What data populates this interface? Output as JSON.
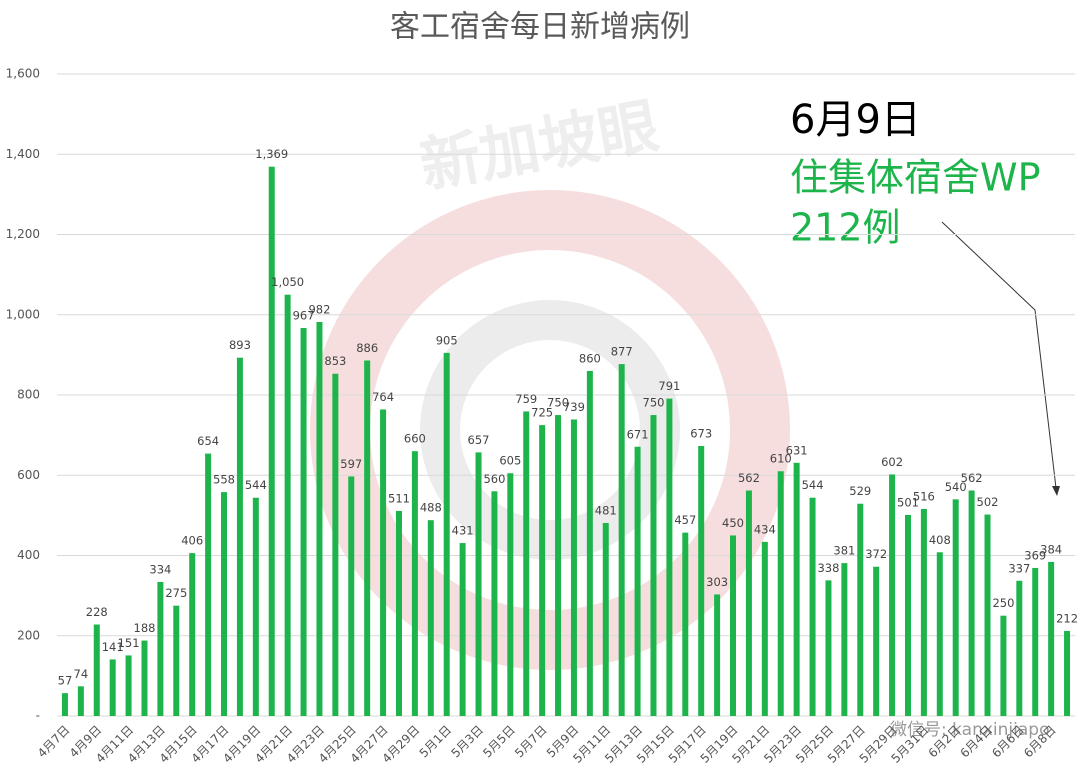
{
  "chart_data": {
    "type": "bar",
    "title": "客工宿舍每日新增病例",
    "categories": [
      "4月7日",
      null,
      "4月9日",
      null,
      "4月11日",
      null,
      "4月13日",
      null,
      "4月15日",
      null,
      "4月17日",
      null,
      "4月19日",
      null,
      "4月21日",
      null,
      "4月23日",
      null,
      "4月25日",
      null,
      "4月27日",
      null,
      "4月29日",
      null,
      "5月1日",
      null,
      "5月3日",
      null,
      "5月5日",
      null,
      "5月7日",
      null,
      "5月9日",
      null,
      "5月11日",
      null,
      "5月13日",
      null,
      "5月15日",
      null,
      "5月17日",
      null,
      "5月19日",
      null,
      "5月21日",
      null,
      "5月23日",
      null,
      "5月25日",
      null,
      "5月27日",
      null,
      "5月29日",
      null,
      "5月31日",
      null,
      "6月2日",
      null,
      "6月4日",
      null,
      "6月6日",
      null,
      "6月8日",
      null
    ],
    "values": [
      57,
      74,
      228,
      141,
      151,
      188,
      334,
      275,
      406,
      654,
      558,
      893,
      544,
      1369,
      1050,
      967,
      982,
      853,
      597,
      886,
      764,
      511,
      660,
      488,
      905,
      431,
      657,
      560,
      605,
      759,
      725,
      750,
      739,
      860,
      481,
      877,
      671,
      750,
      791,
      457,
      673,
      303,
      450,
      562,
      434,
      610,
      631,
      544,
      338,
      381,
      529,
      372,
      602,
      501,
      516,
      408,
      540,
      562,
      502,
      250,
      337,
      369,
      384,
      212
    ],
    "value_labels": [
      "57",
      "74",
      "228",
      "141",
      "151",
      "188",
      "334",
      "275",
      "406",
      "654",
      "558",
      "893",
      "544",
      "1,369",
      "1,050",
      "967",
      "982",
      "853",
      "597",
      "886",
      "764",
      "511",
      "660",
      "488",
      "905",
      "431",
      "657",
      "560",
      "605",
      "759",
      "725",
      "750",
      "739",
      "860",
      "481",
      "877",
      "671",
      "750",
      "791",
      "457",
      "673",
      "303",
      "450",
      "562",
      "434",
      "610",
      "631",
      "544",
      "338",
      "381",
      "529",
      "372",
      "602",
      "501",
      "516",
      "408",
      "540",
      "562",
      "502",
      "250",
      "337",
      "369",
      "384",
      "212"
    ],
    "color": "#1db54b",
    "ylim": [
      0,
      1600
    ],
    "yticks": [
      {
        "value": 0,
        "label": "-"
      },
      200,
      400,
      600,
      800,
      {
        "value": 1000,
        "label": "1,000"
      },
      {
        "value": 1200,
        "label": "1,200"
      },
      {
        "value": 1400,
        "label": "1,400"
      },
      {
        "value": 1600,
        "label": "1,600"
      }
    ],
    "grid": true,
    "annotation": {
      "date": "6月9日",
      "text": "住集体宿舍WP",
      "count": "212例"
    },
    "watermarks": [
      "新加坡眼",
      "微信号: kanxinjiapo"
    ]
  }
}
